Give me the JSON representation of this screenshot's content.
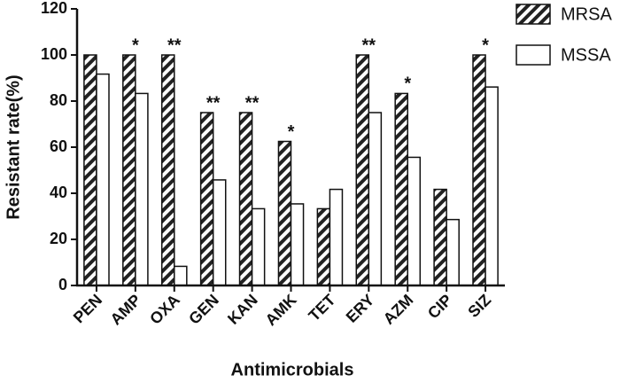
{
  "chart_data": {
    "type": "bar",
    "x_label": "Antimicrobials",
    "y_label": "Resistant rate(%)",
    "categories": [
      "PEN",
      "AMP",
      "OXA",
      "GEN",
      "KAN",
      "AMK",
      "TET",
      "ERY",
      "AZM",
      "CIP",
      "SIZ"
    ],
    "series": [
      {
        "name": "MRSA",
        "color": "#222222",
        "pattern": "hatch",
        "values": [
          100,
          100,
          100,
          75,
          75,
          62.5,
          33.3,
          100,
          83.3,
          41.7,
          100
        ]
      },
      {
        "name": "MSSA",
        "color": "#ffffff",
        "pattern": "solid",
        "values": [
          91.7,
          83.3,
          8.3,
          45.8,
          33.3,
          35.4,
          41.7,
          75,
          55.6,
          28.6,
          86.1
        ]
      }
    ],
    "annotations": [
      null,
      "*",
      "**",
      "**",
      "**",
      "*",
      null,
      "**",
      "*",
      null,
      "*"
    ],
    "ylim": [
      0,
      120
    ],
    "yticks": [
      0,
      20,
      40,
      60,
      80,
      100,
      120
    ],
    "legend": "top-right"
  }
}
